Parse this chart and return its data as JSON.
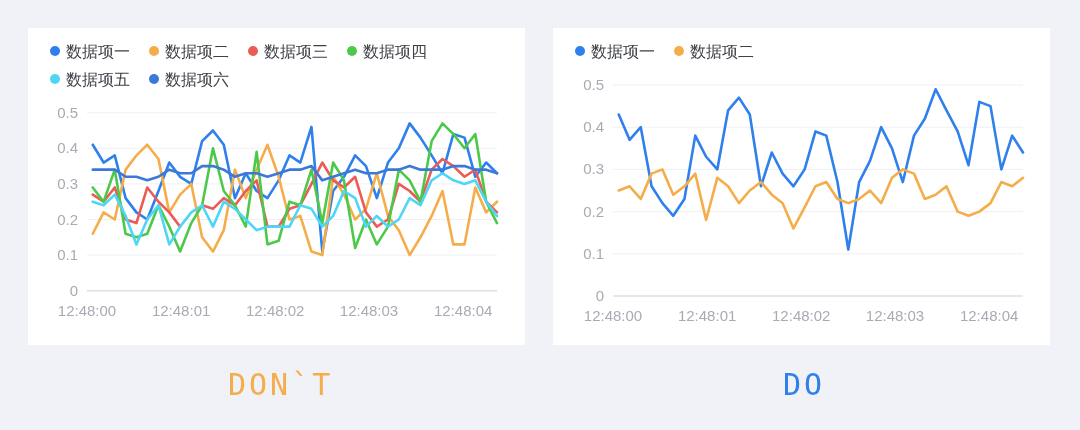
{
  "chart_data": [
    {
      "type": "line",
      "legend": "top left",
      "grid": "y",
      "ylim": [
        0,
        0.5
      ],
      "yticks": [
        0,
        0.1,
        0.2,
        0.3,
        0.4,
        0.5
      ],
      "xlim": [
        12.8,
        12.801211
      ],
      "xticks": [
        {
          "value": 12.8,
          "label": "12:48:00"
        },
        {
          "value": 12.800278,
          "label": "12:48:01"
        },
        {
          "value": 12.800556,
          "label": "12:48:02"
        },
        {
          "value": 12.800833,
          "label": "12:48:03"
        },
        {
          "value": 12.801111,
          "label": "12:48:04"
        }
      ],
      "x": [
        12.800017,
        12.800049,
        12.800082,
        12.800114,
        12.800146,
        12.800178,
        12.800211,
        12.800243,
        12.800275,
        12.800308,
        12.80034,
        12.800372,
        12.800404,
        12.800437,
        12.800469,
        12.800501,
        12.800533,
        12.800566,
        12.800598,
        12.80063,
        12.800663,
        12.800695,
        12.800727,
        12.800759,
        12.800792,
        12.800824,
        12.800856,
        12.800889,
        12.800921,
        12.800953,
        12.800985,
        12.801018,
        12.80105,
        12.801082,
        12.801115,
        12.801147,
        12.801179,
        12.801211
      ],
      "series": [
        {
          "name": "数据项一",
          "color": "#2f80ed",
          "values": [
            0.41,
            0.36,
            0.38,
            0.26,
            0.22,
            0.2,
            0.28,
            0.36,
            0.32,
            0.3,
            0.42,
            0.45,
            0.41,
            0.26,
            0.33,
            0.28,
            0.26,
            0.31,
            0.38,
            0.36,
            0.46,
            0.11,
            0.28,
            0.32,
            0.38,
            0.35,
            0.26,
            0.36,
            0.4,
            0.47,
            0.43,
            0.38,
            0.33,
            0.44,
            0.43,
            0.32,
            0.36,
            0.33
          ]
        },
        {
          "name": "数据项二",
          "color": "#f5ad4a",
          "values": [
            0.16,
            0.22,
            0.2,
            0.34,
            0.38,
            0.41,
            0.37,
            0.22,
            0.27,
            0.3,
            0.15,
            0.11,
            0.17,
            0.34,
            0.26,
            0.34,
            0.41,
            0.32,
            0.2,
            0.21,
            0.11,
            0.1,
            0.32,
            0.27,
            0.2,
            0.23,
            0.33,
            0.21,
            0.17,
            0.1,
            0.15,
            0.21,
            0.28,
            0.13,
            0.13,
            0.29,
            0.22,
            0.25
          ]
        },
        {
          "name": "数据项三",
          "color": "#ec5b56",
          "values": [
            0.27,
            0.25,
            0.29,
            0.2,
            0.19,
            0.29,
            0.25,
            0.22,
            0.18,
            null,
            0.24,
            0.23,
            0.26,
            0.24,
            0.28,
            0.31,
            0.18,
            0.18,
            0.23,
            0.24,
            0.3,
            0.36,
            0.31,
            0.29,
            0.32,
            0.22,
            0.18,
            0.2,
            0.3,
            0.28,
            0.25,
            0.34,
            0.37,
            0.35,
            0.32,
            0.34,
            0.25,
            0.22
          ]
        },
        {
          "name": "数据项四",
          "color": "#4cc94a",
          "values": [
            0.29,
            0.25,
            0.34,
            0.16,
            0.15,
            0.16,
            0.24,
            0.18,
            0.11,
            0.19,
            0.24,
            0.4,
            0.28,
            0.24,
            0.18,
            0.39,
            0.13,
            0.14,
            0.25,
            0.24,
            0.34,
            0.19,
            0.36,
            0.31,
            0.12,
            0.2,
            0.13,
            0.18,
            0.34,
            0.31,
            0.25,
            0.42,
            0.47,
            0.44,
            0.4,
            0.44,
            0.25,
            0.19
          ]
        },
        {
          "name": "数据项五",
          "color": "#4fd6f5",
          "values": [
            0.25,
            0.24,
            0.27,
            0.21,
            0.13,
            0.2,
            0.24,
            0.13,
            0.18,
            0.22,
            0.24,
            0.18,
            0.25,
            0.23,
            0.2,
            0.17,
            0.18,
            0.18,
            0.18,
            0.24,
            0.23,
            0.18,
            0.21,
            0.28,
            0.26,
            0.18,
            0.21,
            0.18,
            0.2,
            0.26,
            0.24,
            0.31,
            0.33,
            0.31,
            0.3,
            0.31,
            0.25,
            0.21
          ]
        },
        {
          "name": "数据项六",
          "color": "#3b78d8",
          "values": [
            0.34,
            0.34,
            0.34,
            0.32,
            0.32,
            0.31,
            0.32,
            0.34,
            0.33,
            0.33,
            0.35,
            0.35,
            0.34,
            0.32,
            0.33,
            0.33,
            0.32,
            0.33,
            0.34,
            0.34,
            0.35,
            0.31,
            0.32,
            0.33,
            0.34,
            0.33,
            0.33,
            0.34,
            0.34,
            0.35,
            0.34,
            0.34,
            0.34,
            0.35,
            0.35,
            0.34,
            0.34,
            0.33
          ]
        }
      ],
      "annotations": [
        "DON`T"
      ]
    },
    {
      "type": "line",
      "legend": "top left",
      "grid": "y",
      "ylim": [
        0,
        0.5
      ],
      "yticks": [
        0,
        0.1,
        0.2,
        0.3,
        0.4,
        0.5
      ],
      "xlim": [
        12.8,
        12.801211
      ],
      "xticks": [
        {
          "value": 12.8,
          "label": "12:48:00"
        },
        {
          "value": 12.800278,
          "label": "12:48:01"
        },
        {
          "value": 12.800556,
          "label": "12:48:02"
        },
        {
          "value": 12.800833,
          "label": "12:48:03"
        },
        {
          "value": 12.801111,
          "label": "12:48:04"
        }
      ],
      "x": [
        12.800017,
        12.800049,
        12.800082,
        12.800114,
        12.800146,
        12.800178,
        12.800211,
        12.800243,
        12.800275,
        12.800308,
        12.80034,
        12.800372,
        12.800404,
        12.800437,
        12.800469,
        12.800501,
        12.800533,
        12.800566,
        12.800598,
        12.80063,
        12.800663,
        12.800695,
        12.800727,
        12.800759,
        12.800792,
        12.800824,
        12.800856,
        12.800889,
        12.800921,
        12.800953,
        12.800985,
        12.801018,
        12.80105,
        12.801082,
        12.801115,
        12.801147,
        12.801179,
        12.801211
      ],
      "series": [
        {
          "name": "数据项一",
          "color": "#2f80ed",
          "values": [
            0.43,
            0.37,
            0.4,
            0.26,
            0.22,
            0.19,
            0.23,
            0.38,
            0.33,
            0.3,
            0.44,
            0.47,
            0.43,
            0.26,
            0.34,
            0.29,
            0.26,
            0.3,
            0.39,
            0.38,
            0.27,
            0.11,
            0.27,
            0.32,
            0.4,
            0.35,
            0.27,
            0.38,
            0.42,
            0.49,
            0.44,
            0.39,
            0.31,
            0.46,
            0.45,
            0.3,
            0.38,
            0.34
          ]
        },
        {
          "name": "数据项二",
          "color": "#f5ad4a",
          "values": [
            0.25,
            0.26,
            0.23,
            0.29,
            0.3,
            0.24,
            0.26,
            0.29,
            0.18,
            0.28,
            0.26,
            0.22,
            0.25,
            0.27,
            0.24,
            0.22,
            0.16,
            0.21,
            0.26,
            0.27,
            0.23,
            0.22,
            0.23,
            0.25,
            0.22,
            0.28,
            0.3,
            0.29,
            0.23,
            0.24,
            0.26,
            0.2,
            0.19,
            0.2,
            0.22,
            0.27,
            0.26,
            0.28
          ]
        }
      ],
      "annotations": [
        "DO"
      ]
    }
  ]
}
